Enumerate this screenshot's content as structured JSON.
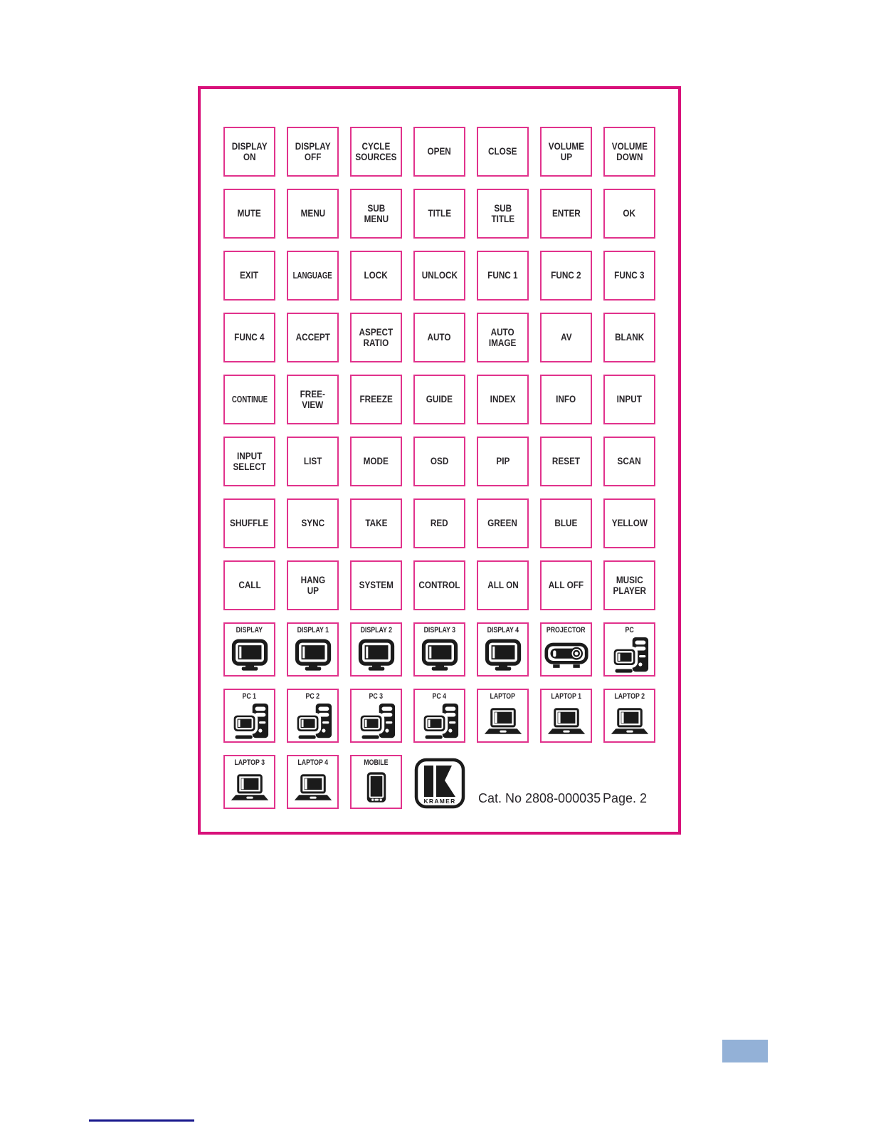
{
  "colors": {
    "accent_pink": "#E1328C",
    "frame_pink": "#D8117A",
    "ink": "#29262A",
    "icon_black": "#1B1B1B",
    "blue_box": "#93B1D7",
    "navy_line": "#17178C"
  },
  "logo": {
    "brand": "KRAMER"
  },
  "footer": {
    "catalog": "Cat. No 2808-000035",
    "page": "Page. 2"
  },
  "keys": [
    {
      "label": "DISPLAY\nON"
    },
    {
      "label": "DISPLAY\nOFF"
    },
    {
      "label": "CYCLE\nSOURCES"
    },
    {
      "label": "OPEN"
    },
    {
      "label": "CLOSE"
    },
    {
      "label": "VOLUME\nUP"
    },
    {
      "label": "VOLUME\nDOWN"
    },
    {
      "label": "MUTE"
    },
    {
      "label": "MENU"
    },
    {
      "label": "SUB\nMENU"
    },
    {
      "label": "TITLE"
    },
    {
      "label": "SUB\nTITLE"
    },
    {
      "label": "ENTER"
    },
    {
      "label": "OK"
    },
    {
      "label": "EXIT"
    },
    {
      "label": "LANGUAGE",
      "size": "xs"
    },
    {
      "label": "LOCK"
    },
    {
      "label": "UNLOCK"
    },
    {
      "label": "FUNC 1"
    },
    {
      "label": "FUNC 2"
    },
    {
      "label": "FUNC 3"
    },
    {
      "label": "FUNC 4"
    },
    {
      "label": "ACCEPT"
    },
    {
      "label": "ASPECT\nRATIO"
    },
    {
      "label": "AUTO"
    },
    {
      "label": "AUTO\nIMAGE"
    },
    {
      "label": "AV"
    },
    {
      "label": "BLANK"
    },
    {
      "label": "CONTINUE",
      "size": "xs"
    },
    {
      "label": "FREE-\nVIEW"
    },
    {
      "label": "FREEZE"
    },
    {
      "label": "GUIDE"
    },
    {
      "label": "INDEX"
    },
    {
      "label": "INFO"
    },
    {
      "label": "INPUT"
    },
    {
      "label": "INPUT\nSELECT"
    },
    {
      "label": "LIST"
    },
    {
      "label": "MODE"
    },
    {
      "label": "OSD"
    },
    {
      "label": "PIP"
    },
    {
      "label": "RESET"
    },
    {
      "label": "SCAN"
    },
    {
      "label": "SHUFFLE"
    },
    {
      "label": "SYNC"
    },
    {
      "label": "TAKE"
    },
    {
      "label": "RED"
    },
    {
      "label": "GREEN"
    },
    {
      "label": "BLUE"
    },
    {
      "label": "YELLOW"
    },
    {
      "label": "CALL"
    },
    {
      "label": "HANG\nUP"
    },
    {
      "label": "SYSTEM"
    },
    {
      "label": "CONTROL"
    },
    {
      "label": "ALL ON"
    },
    {
      "label": "ALL OFF"
    },
    {
      "label": "MUSIC\nPLAYER"
    },
    {
      "label": "DISPLAY",
      "icon": "display"
    },
    {
      "label": "DISPLAY 1",
      "icon": "display"
    },
    {
      "label": "DISPLAY 2",
      "icon": "display"
    },
    {
      "label": "DISPLAY 3",
      "icon": "display"
    },
    {
      "label": "DISPLAY 4",
      "icon": "display"
    },
    {
      "label": "PROJECTOR",
      "icon": "projector"
    },
    {
      "label": "PC",
      "icon": "pc"
    },
    {
      "label": "PC 1",
      "icon": "pc"
    },
    {
      "label": "PC 2",
      "icon": "pc"
    },
    {
      "label": "PC 3",
      "icon": "pc"
    },
    {
      "label": "PC 4",
      "icon": "pc"
    },
    {
      "label": "LAPTOP",
      "icon": "laptop"
    },
    {
      "label": "LAPTOP 1",
      "icon": "laptop"
    },
    {
      "label": "LAPTOP 2",
      "icon": "laptop"
    },
    {
      "label": "LAPTOP 3",
      "icon": "laptop"
    },
    {
      "label": "LAPTOP 4",
      "icon": "laptop"
    },
    {
      "label": "MOBILE",
      "icon": "mobile"
    }
  ]
}
